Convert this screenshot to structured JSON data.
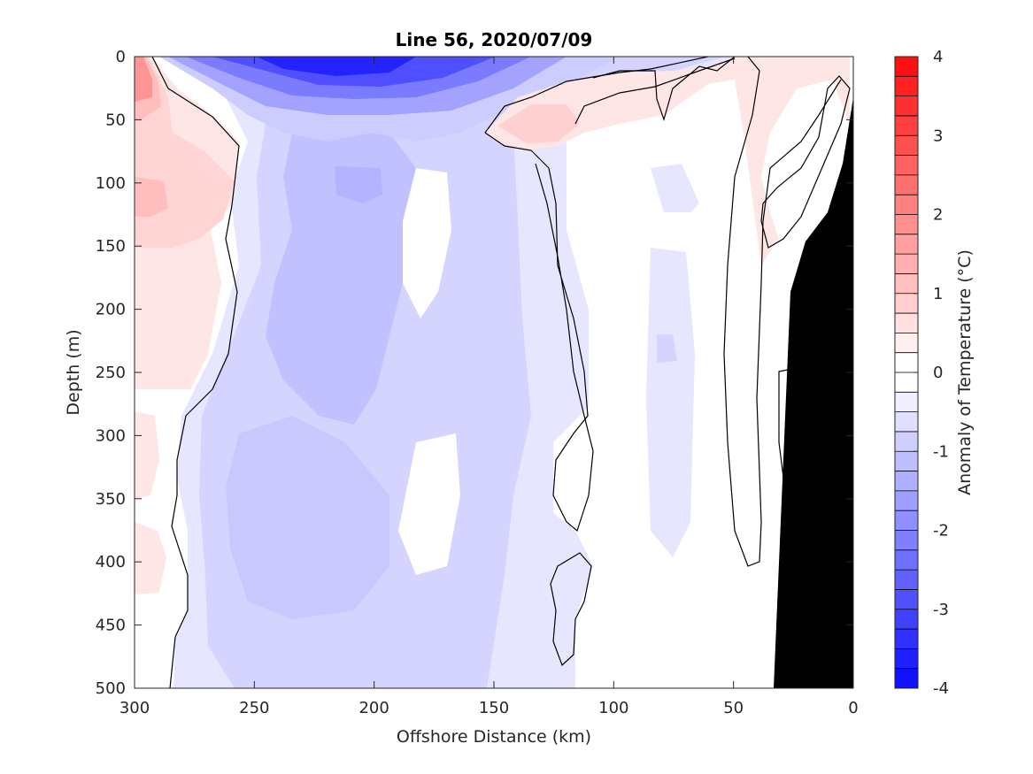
{
  "chart_data": {
    "type": "heatmap",
    "subtype": "filled contour section",
    "title": "Line 56, 2020/07/09",
    "xlabel": "Offshore Distance (km)",
    "ylabel": "Depth (m)",
    "colorbar_label": "Anomaly of Temperature (°C)",
    "xlim": [
      300,
      0
    ],
    "ylim": [
      0,
      500
    ],
    "x_reversed": true,
    "y_reversed": true,
    "x_ticks": [
      300,
      250,
      200,
      150,
      100,
      50,
      0
    ],
    "y_ticks": [
      0,
      50,
      100,
      150,
      200,
      250,
      300,
      350,
      400,
      450,
      500
    ],
    "clim": [
      -4,
      4
    ],
    "colorbar_ticks": [
      4,
      3,
      2,
      1,
      0,
      -1,
      -2,
      -3,
      -4
    ],
    "contour_interval": 0.25,
    "colormap": {
      "negative": "#0000ff",
      "zero": "#ffffff",
      "positive": "#ff0000"
    },
    "bathymetry_color": "#000000",
    "zero_contour_color": "#000000",
    "grid": false,
    "features": [
      {
        "name": "surface cold core",
        "x_range": [
          270,
          160
        ],
        "depth_range": [
          0,
          45
        ],
        "anomaly": -2.5
      },
      {
        "name": "offshore warm patch",
        "x_range": [
          300,
          250
        ],
        "depth_range": [
          0,
          150
        ],
        "anomaly": 1.0
      },
      {
        "name": "mid-section cool water",
        "x_range": [
          280,
          140
        ],
        "depth_range": [
          50,
          500
        ],
        "anomaly": -0.5
      },
      {
        "name": "subsurface cool core",
        "x_range": [
          240,
          185
        ],
        "depth_range": [
          210,
          380
        ],
        "anomaly": -0.75
      },
      {
        "name": "nearshore warm lens",
        "x_range": [
          150,
          90
        ],
        "depth_range": [
          10,
          80
        ],
        "anomaly": 0.5
      }
    ]
  }
}
